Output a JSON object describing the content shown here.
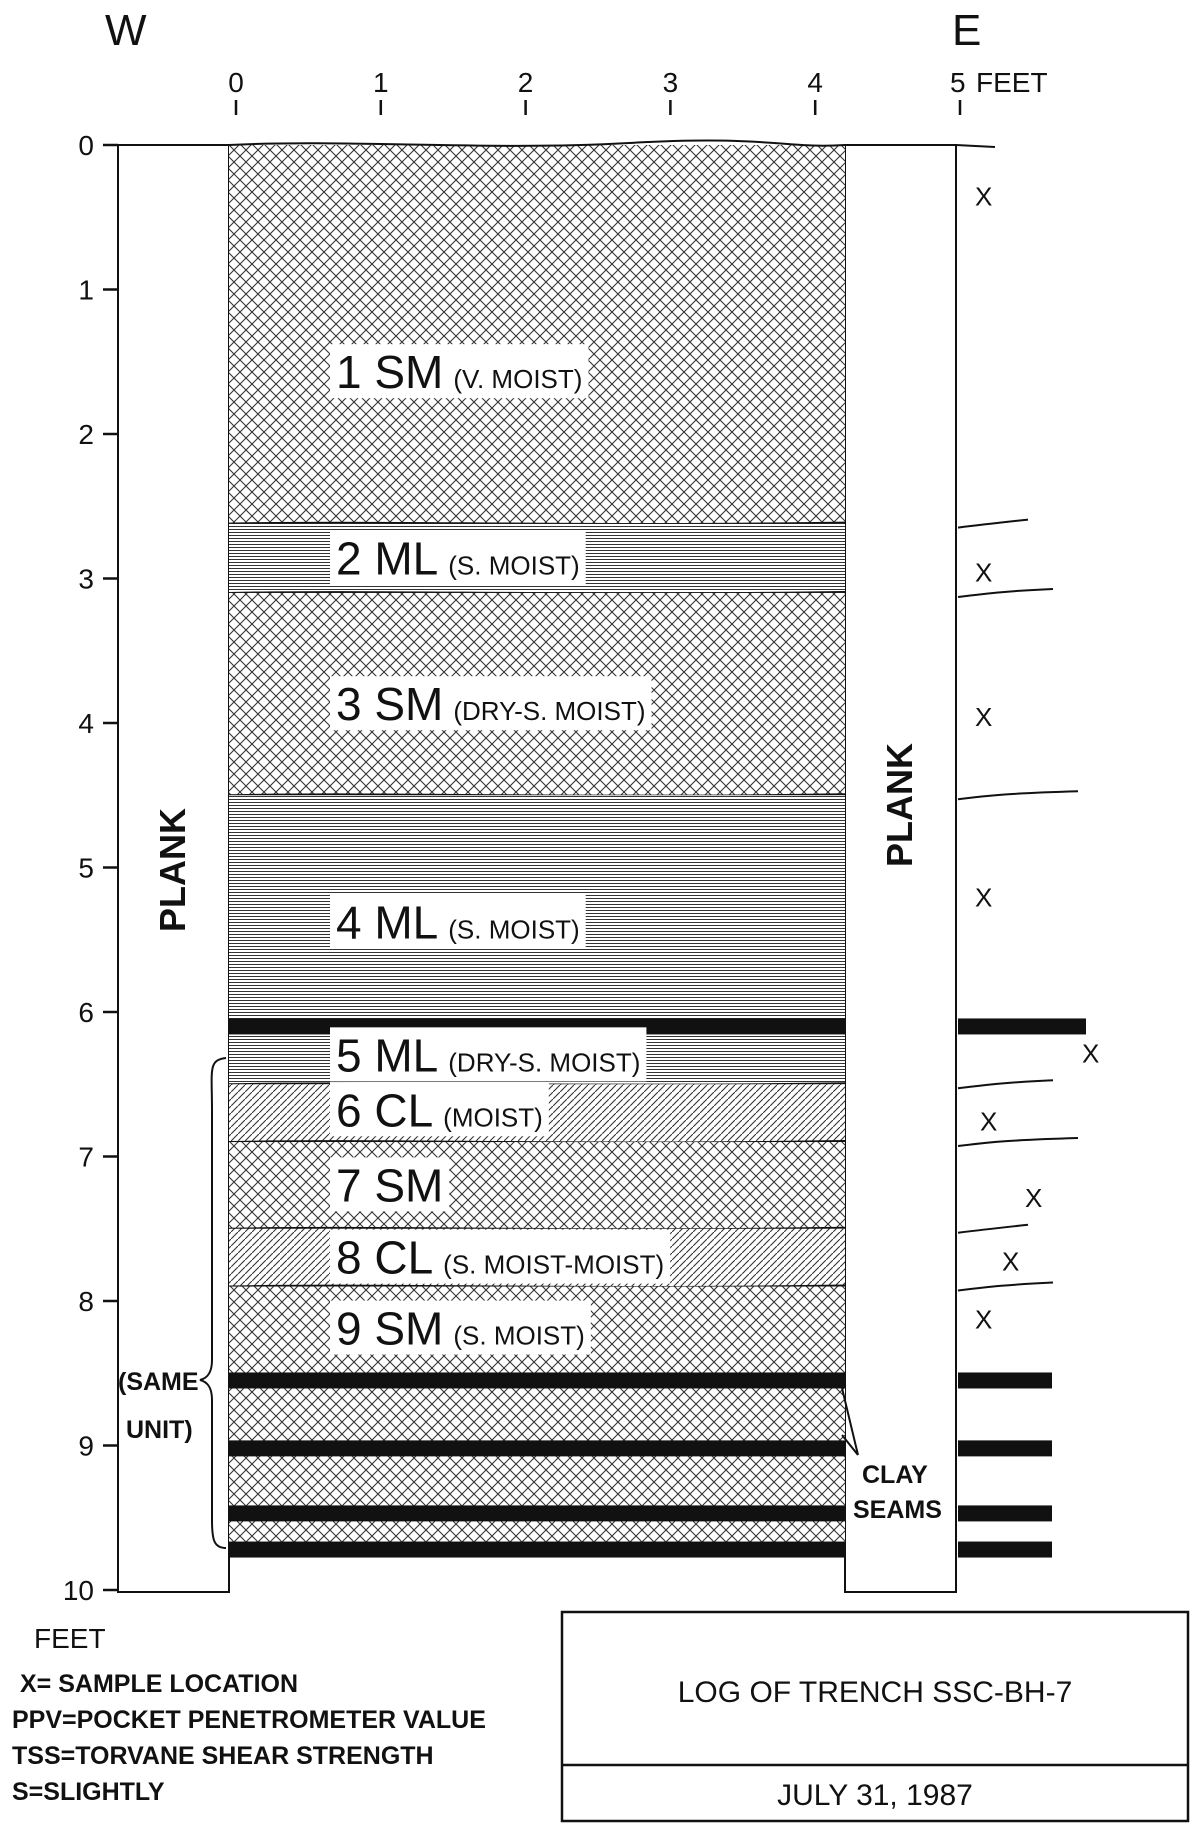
{
  "compass": {
    "west": "W",
    "east": "E"
  },
  "horizontal_axis": {
    "ticks": [
      "0",
      "1",
      "2",
      "3",
      "4",
      "5"
    ],
    "unit": "FEET"
  },
  "vertical_axis": {
    "ticks": [
      "0",
      "1",
      "2",
      "3",
      "4",
      "5",
      "6",
      "7",
      "8",
      "9",
      "10"
    ],
    "unit": "FEET"
  },
  "planks": {
    "left_label": "PLANK",
    "right_label": "PLANK"
  },
  "layers": [
    {
      "id": "1",
      "code": "1 SM",
      "condition": "(V. MOIST)",
      "top_ft": 0,
      "bottom_ft": 2.62,
      "pattern": "cross"
    },
    {
      "id": "2",
      "code": "2 ML",
      "condition": "(S. MOIST)",
      "top_ft": 2.62,
      "bottom_ft": 3.1,
      "pattern": "horizontal"
    },
    {
      "id": "3",
      "code": "3 SM",
      "condition": "(DRY-S. MOIST)",
      "top_ft": 3.1,
      "bottom_ft": 4.5,
      "pattern": "cross"
    },
    {
      "id": "4",
      "code": "4 ML",
      "condition": "(S. MOIST)",
      "top_ft": 4.5,
      "bottom_ft": 6.1,
      "pattern": "horizontal"
    },
    {
      "id": "5",
      "code": "5 ML",
      "condition": "(DRY-S. MOIST)",
      "top_ft": 6.1,
      "bottom_ft": 6.5,
      "pattern": "horizontal"
    },
    {
      "id": "6",
      "code": "6 CL",
      "condition": "(MOIST)",
      "top_ft": 6.5,
      "bottom_ft": 6.9,
      "pattern": "diagonal"
    },
    {
      "id": "7",
      "code": "7 SM",
      "condition": "",
      "top_ft": 6.9,
      "bottom_ft": 7.5,
      "pattern": "cross"
    },
    {
      "id": "8",
      "code": "8 CL",
      "condition": "(S. MOIST-MOIST)",
      "top_ft": 7.5,
      "bottom_ft": 7.9,
      "pattern": "diagonal"
    },
    {
      "id": "9",
      "code": "9 SM",
      "condition": "(S. MOIST)",
      "top_ft": 7.9,
      "bottom_ft": 9.75,
      "pattern": "cross"
    }
  ],
  "clay_seams_ft": [
    6.1,
    8.55,
    9.02,
    9.47,
    9.72
  ],
  "sample_locations_ft": [
    0.35,
    2.95,
    3.95,
    5.2,
    6.28,
    6.75,
    7.28,
    7.72,
    8.12
  ],
  "annotations": {
    "same_unit_line1": "(SAME",
    "same_unit_line2": "UNIT)",
    "clay_seams_line1": "CLAY",
    "clay_seams_line2": "SEAMS",
    "sample_marker": "X"
  },
  "legend": [
    "X= SAMPLE LOCATION",
    "PPV=POCKET PENETROMETER VALUE",
    "TSS=TORVANE SHEAR STRENGTH",
    "S=SLIGHTLY"
  ],
  "title_box": {
    "title": "LOG OF TRENCH SSC-BH-7",
    "date": "JULY 31, 1987"
  }
}
